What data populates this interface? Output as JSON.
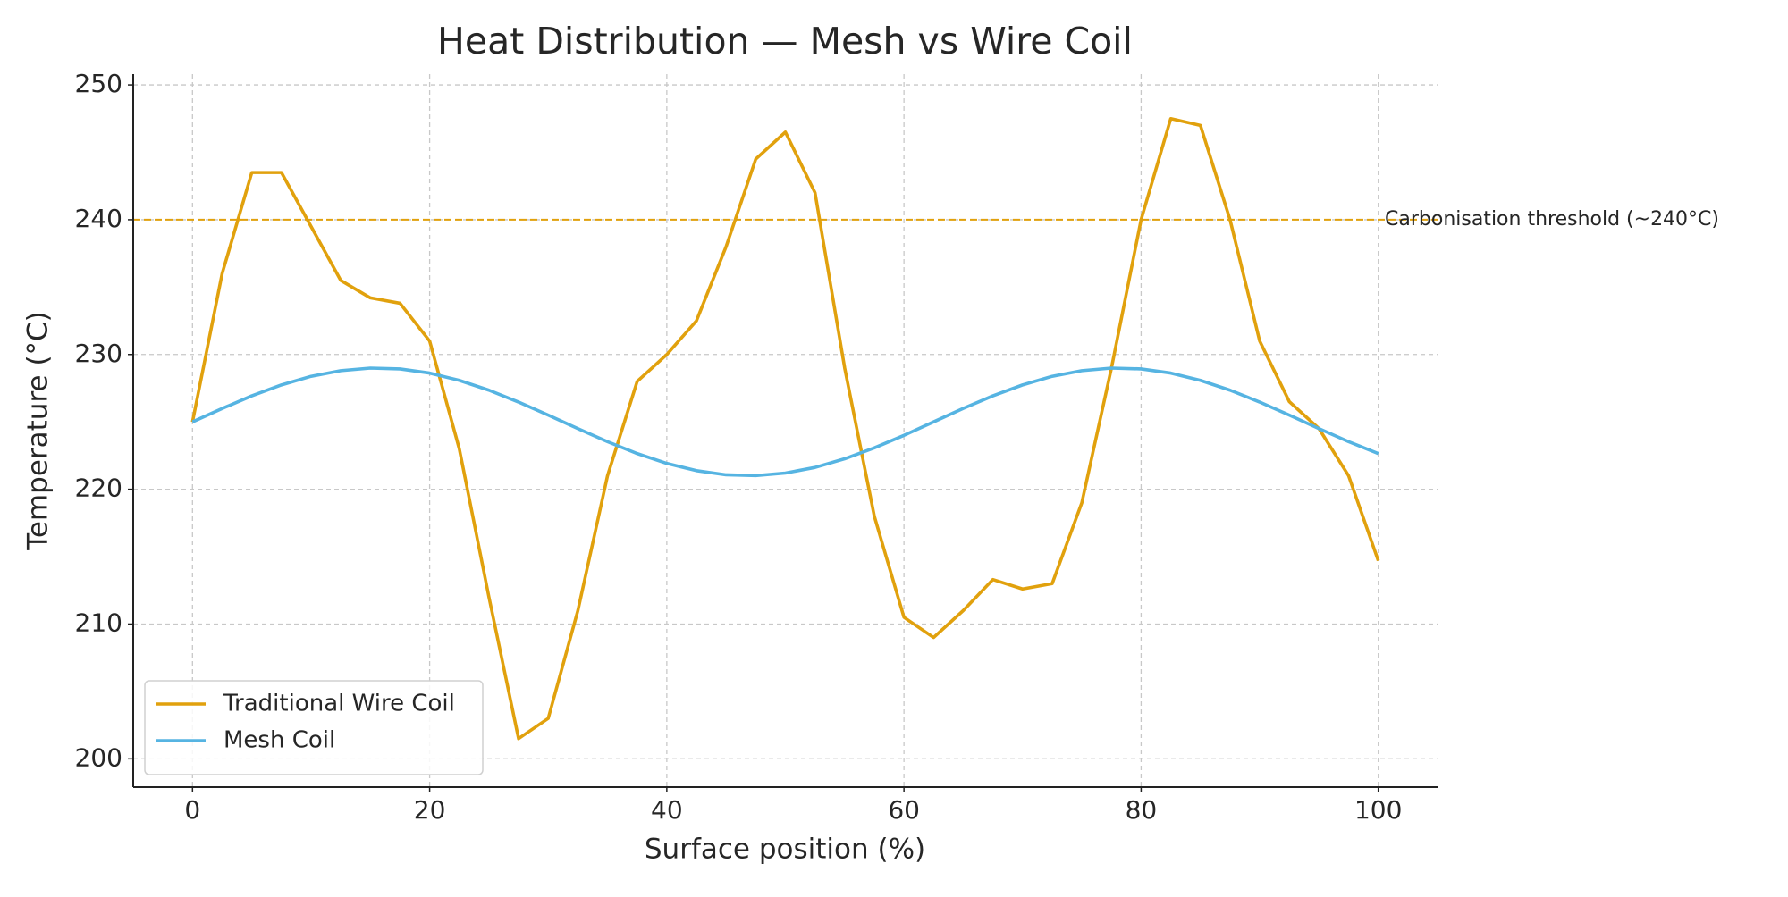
{
  "chart_data": {
    "type": "line",
    "title": "Heat Distribution — Mesh vs Wire Coil",
    "x_label": "Surface position (%)",
    "y_label": "Temperature (°C)",
    "x": [
      0,
      2.5,
      5,
      7.5,
      10,
      12.5,
      15,
      17.5,
      20,
      22.5,
      25,
      27.5,
      30,
      32.5,
      35,
      37.5,
      40,
      42.5,
      45,
      47.5,
      50,
      52.5,
      55,
      57.5,
      60,
      62.5,
      65,
      67.5,
      70,
      72.5,
      75,
      77.5,
      80,
      82.5,
      85,
      87.5,
      90,
      92.5,
      95,
      97.5,
      100
    ],
    "series": [
      {
        "name": "Traditional Wire Coil",
        "color": "#e1a10d",
        "values": [
          225,
          236,
          243.5,
          243.5,
          239.5,
          235.5,
          234.2,
          233.8,
          231,
          223,
          212,
          201.5,
          203,
          211,
          221,
          228,
          230,
          232.5,
          238,
          244.5,
          246.5,
          242,
          229,
          218,
          210.5,
          209,
          211,
          213.3,
          212.6,
          213,
          219,
          229,
          240,
          247.5,
          247,
          240,
          231,
          226.5,
          224.5,
          221,
          214.7
        ]
      },
      {
        "name": "Mesh Coil",
        "color": "#56b4e2",
        "values": [
          225,
          225.99,
          226.93,
          227.74,
          228.38,
          228.8,
          228.99,
          228.93,
          228.62,
          228.08,
          227.35,
          226.47,
          225.5,
          224.5,
          223.53,
          222.65,
          221.92,
          221.38,
          221.07,
          221.01,
          221.2,
          221.62,
          222.26,
          223.07,
          224,
          225,
          226,
          226.93,
          227.74,
          228.38,
          228.8,
          228.99,
          228.93,
          228.62,
          228.08,
          227.35,
          226.47,
          225.5,
          224.5,
          223.53,
          222.65
        ]
      }
    ],
    "threshold": {
      "value": 240,
      "label": "Carbonisation threshold (~240°C)",
      "color": "#e1a10d"
    },
    "xlim": [
      -5,
      105
    ],
    "ylim": [
      197.9,
      250.8
    ],
    "xticks": [
      0,
      20,
      40,
      60,
      80,
      100
    ],
    "yticks": [
      200,
      210,
      220,
      230,
      240,
      250
    ],
    "grid": true,
    "legend": "lower left"
  }
}
